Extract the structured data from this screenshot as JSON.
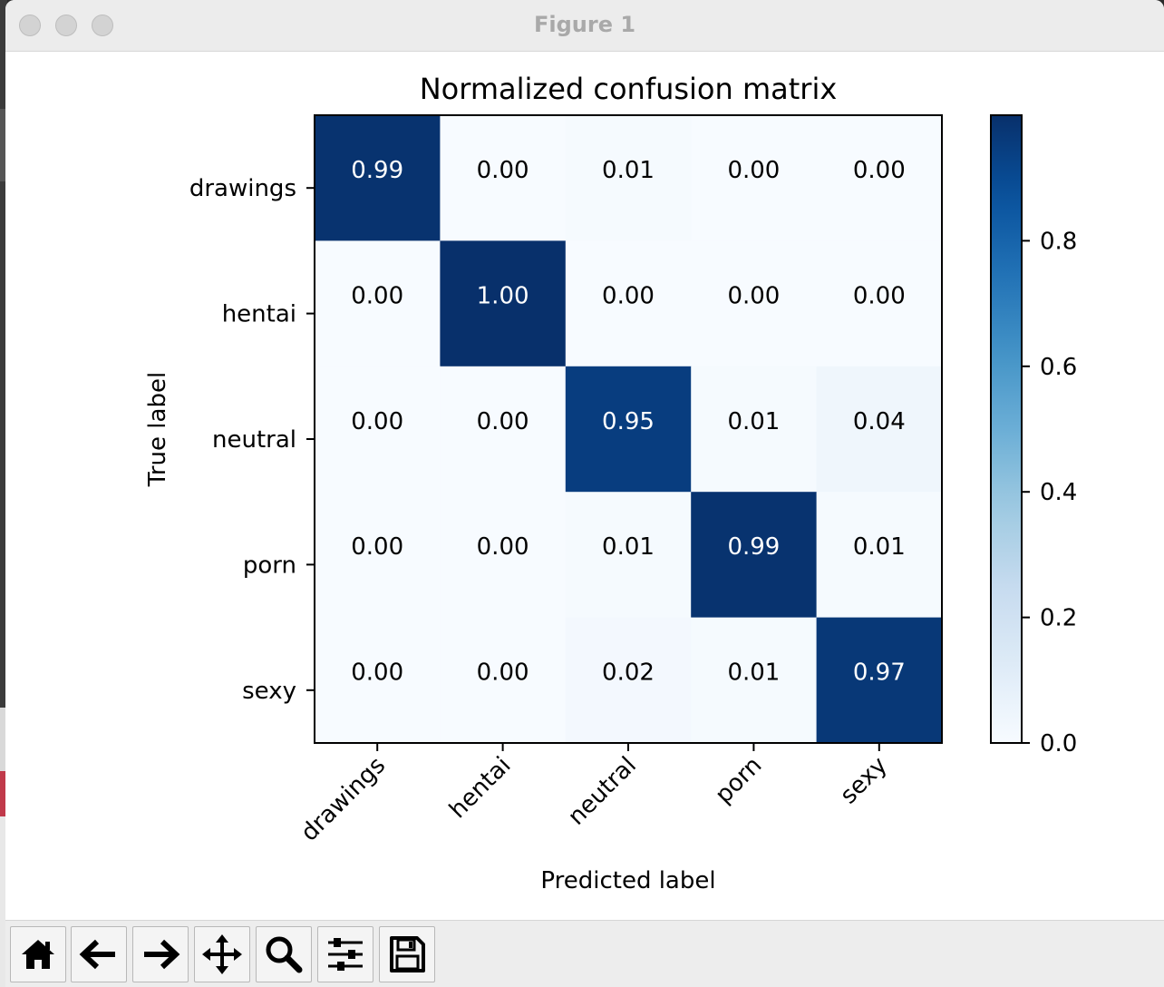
{
  "window": {
    "title": "Figure 1"
  },
  "toolbar": {
    "buttons": [
      {
        "name": "home-icon"
      },
      {
        "name": "back-arrow-icon"
      },
      {
        "name": "forward-arrow-icon"
      },
      {
        "name": "pan-move-icon"
      },
      {
        "name": "zoom-magnifier-icon"
      },
      {
        "name": "configure-subplots-icon"
      },
      {
        "name": "save-figure-icon"
      }
    ]
  },
  "chart_data": {
    "type": "heatmap",
    "title": "Normalized confusion matrix",
    "xlabel": "Predicted label",
    "ylabel": "True label",
    "x_categories": [
      "drawings",
      "hentai",
      "neutral",
      "porn",
      "sexy"
    ],
    "y_categories": [
      "drawings",
      "hentai",
      "neutral",
      "porn",
      "sexy"
    ],
    "values": [
      [
        0.99,
        0.0,
        0.01,
        0.0,
        0.0
      ],
      [
        0.0,
        1.0,
        0.0,
        0.0,
        0.0
      ],
      [
        0.0,
        0.0,
        0.95,
        0.01,
        0.04
      ],
      [
        0.0,
        0.0,
        0.01,
        0.99,
        0.01
      ],
      [
        0.0,
        0.0,
        0.02,
        0.01,
        0.97
      ]
    ],
    "value_labels": [
      [
        "0.99",
        "0.00",
        "0.01",
        "0.00",
        "0.00"
      ],
      [
        "0.00",
        "1.00",
        "0.00",
        "0.00",
        "0.00"
      ],
      [
        "0.00",
        "0.00",
        "0.95",
        "0.01",
        "0.04"
      ],
      [
        "0.00",
        "0.00",
        "0.01",
        "0.99",
        "0.01"
      ],
      [
        "0.00",
        "0.00",
        "0.02",
        "0.01",
        "0.97"
      ]
    ],
    "colormap": "Blues",
    "colorbar": {
      "range": [
        0,
        1.0
      ],
      "ticks": [
        0.0,
        0.2,
        0.4,
        0.6,
        0.8
      ],
      "tick_labels": [
        "0.0",
        "0.2",
        "0.4",
        "0.6",
        "0.8"
      ]
    },
    "text_color_dark_cells": "#ffffff",
    "text_color_light_cells": "#000000"
  }
}
